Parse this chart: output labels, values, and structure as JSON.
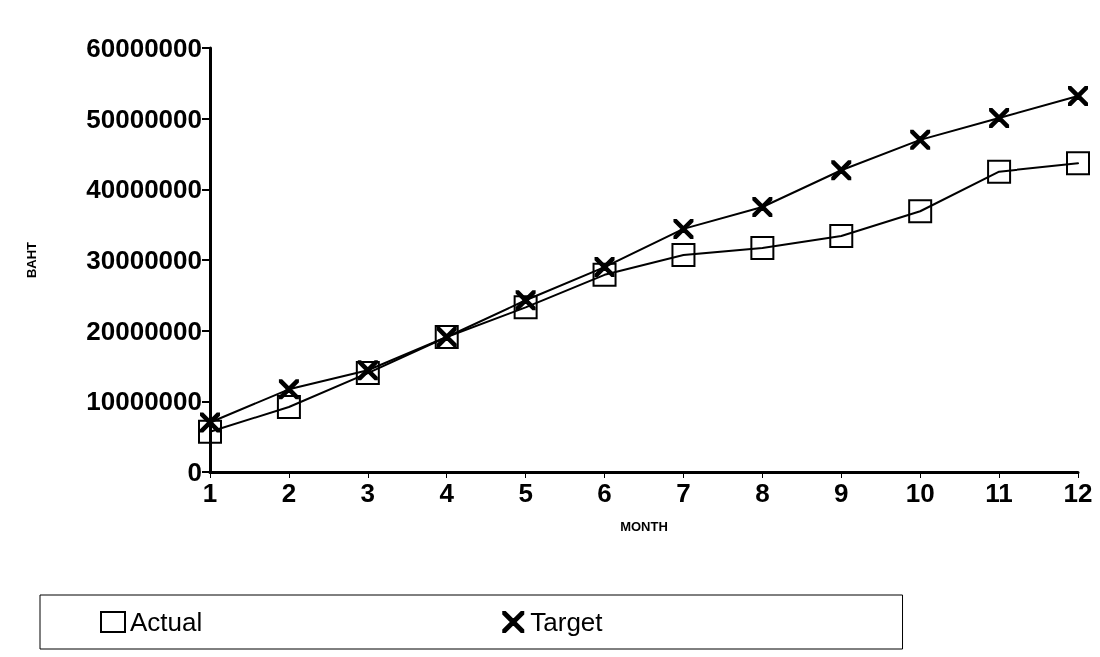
{
  "chart_data": {
    "type": "line",
    "xlabel": "MONTH",
    "ylabel": "BAHT",
    "x": [
      1,
      2,
      3,
      4,
      5,
      6,
      7,
      8,
      9,
      10,
      11,
      12
    ],
    "series": [
      {
        "name": "Actual",
        "color": "#000000",
        "marker": "square",
        "values": [
          5700000,
          9200000,
          14000000,
          19100000,
          23300000,
          27900000,
          30700000,
          31700000,
          33400000,
          36900000,
          42500000,
          43700000
        ]
      },
      {
        "name": "Target",
        "color": "#000000",
        "marker": "cross",
        "values": [
          7000000,
          11700000,
          14400000,
          19100000,
          24300000,
          29000000,
          34400000,
          37500000,
          42700000,
          47000000,
          50100000,
          53200000
        ]
      }
    ],
    "xlim": [
      1,
      12
    ],
    "xticks": [
      1,
      2,
      3,
      4,
      5,
      6,
      7,
      8,
      9,
      10,
      11,
      12
    ],
    "ylim": [
      0,
      60000000
    ],
    "yticks": [
      0,
      10000000,
      20000000,
      30000000,
      40000000,
      50000000,
      60000000
    ],
    "grid": false,
    "legend": "bottom",
    "line_style": "solid"
  }
}
